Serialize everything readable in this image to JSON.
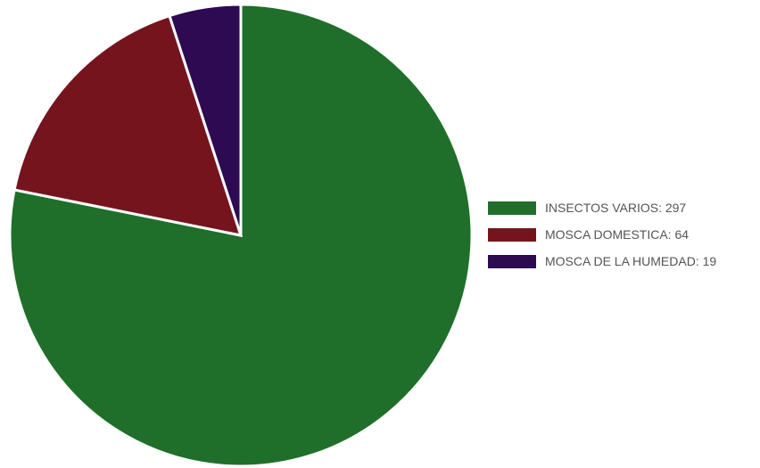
{
  "chart_data": {
    "type": "pie",
    "start_angle": "top",
    "direction": "clockwise",
    "series": [
      {
        "name": "INSECTOS VARIOS",
        "value": 297,
        "color": "#1f6f2b",
        "legend_label": "INSECTOS VARIOS: 297"
      },
      {
        "name": "MOSCA DOMESTICA",
        "value": 64,
        "color": "#76141d",
        "legend_label": "MOSCA DOMESTICA: 64"
      },
      {
        "name": "MOSCA DE LA HUMEDAD",
        "value": 19,
        "color": "#2e0a52",
        "legend_label": "MOSCA DE LA HUMEDAD: 19"
      }
    ],
    "legend_position": "right"
  }
}
